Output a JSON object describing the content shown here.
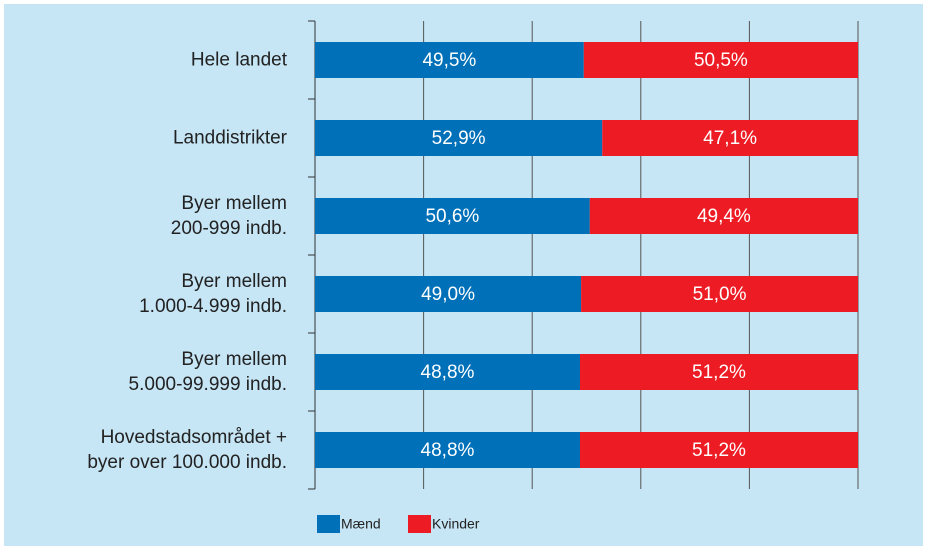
{
  "chart_data": {
    "type": "stacked_barh",
    "categories": [
      "Hele landet",
      "Landdistrikter",
      "Byer mellem\n200-999 indb.",
      "Byer mellem\n1.000-4.999 indb.",
      "Byer mellem\n5.000-99.999 indb.",
      "Hovedstadsområdet +\nbyer over 100.000 indb."
    ],
    "series": [
      {
        "name": "Mænd",
        "color": "#0070b8",
        "values": [
          49.5,
          52.9,
          50.6,
          49.0,
          48.8,
          48.8
        ],
        "value_labels": [
          "49,5%",
          "52,9%",
          "50,6%",
          "49,0%",
          "48,8%",
          "48,8%"
        ]
      },
      {
        "name": "Kvinder",
        "color": "#ed1c24",
        "values": [
          50.5,
          47.1,
          49.4,
          51.0,
          51.2,
          51.2
        ],
        "value_labels": [
          "50,5%",
          "47,1%",
          "49,4%",
          "51,0%",
          "51,2%",
          "51,2%"
        ]
      }
    ],
    "xlim": [
      0,
      100
    ],
    "xticks": [
      0,
      20,
      40,
      60,
      80,
      100
    ],
    "grid": true,
    "legend": "bottom"
  }
}
